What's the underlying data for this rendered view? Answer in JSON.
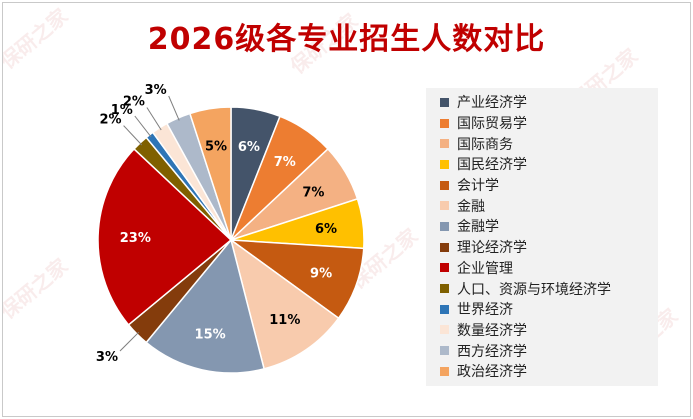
{
  "chart_data": {
    "type": "pie",
    "title": "2026级各专业招生人数对比",
    "labels": [
      "产业经济学",
      "国际贸易学",
      "国际商务",
      "国民经济学",
      "会计学",
      "金融",
      "金融学",
      "理论经济学",
      "企业管理",
      "人口、资源与环境经济学",
      "世界经济",
      "数量经济学",
      "西方经济学",
      "政治经济学"
    ],
    "values": [
      6,
      7,
      7,
      6,
      9,
      11,
      15,
      3,
      23,
      2,
      1,
      2,
      3,
      5
    ],
    "data_labels": [
      "6%",
      "7%",
      "7%",
      "6%",
      "9%",
      "11%",
      "15%",
      "3%",
      "23%",
      "2%",
      "1%",
      "2%",
      "3%",
      "5%"
    ],
    "colors": [
      "#44546a",
      "#ed7d31",
      "#f4b183",
      "#ffc000",
      "#c55a11",
      "#f8cbad",
      "#8497b0",
      "#843c0c",
      "#c00000",
      "#7f6000",
      "#2e75b6",
      "#fbe5d6",
      "#adb9ca",
      "#f4a460"
    ],
    "start_angle_deg": 0,
    "direction": "clockwise",
    "legend_position": "right"
  }
}
